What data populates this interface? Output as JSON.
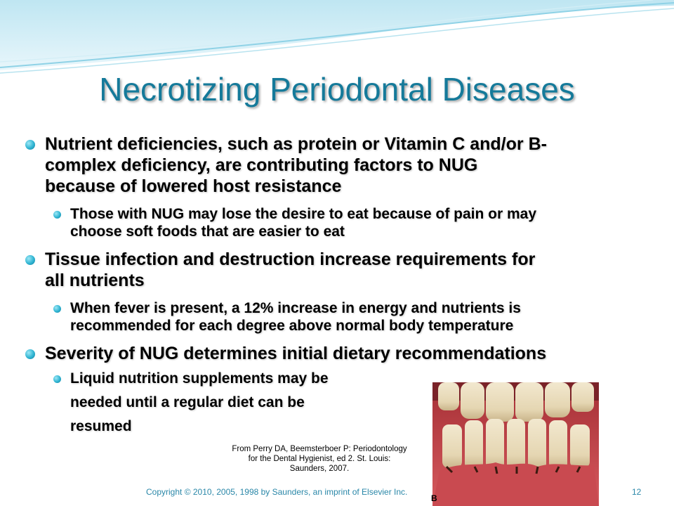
{
  "slide": {
    "title": "Necrotizing Periodontal Diseases",
    "bullets": [
      {
        "text": "Nutrient deficiencies, such as protein or Vitamin C and/or B-",
        "text_line2": "complex deficiency, are contributing factors to NUG",
        "text_line3": "because of lowered host resistance",
        "sub": {
          "line1": "Those with NUG may lose the desire to eat because of pain or may",
          "line2": "choose soft foods that are easier to eat"
        }
      },
      {
        "text": "Tissue infection and destruction increase requirements for",
        "text_line2": "all nutrients",
        "sub": {
          "line1": "When fever is present, a 12% increase in energy and nutrients is",
          "line2": "recommended for each degree above normal body temperature"
        }
      },
      {
        "text": "Severity of NUG determines initial dietary recommendations",
        "sub": {
          "line1": "Liquid nutrition supplements may be",
          "line2": "needed until a regular diet can be",
          "line3": "resumed"
        }
      }
    ],
    "image_credit": {
      "line1": "From Perry DA, Beemsterboer P: Periodontology",
      "line2": "for the Dental Hygienist, ed 2. St. Louis:",
      "line3": "Saunders, 2007."
    },
    "photo_label": "B",
    "footer": "Copyright © 2010, 2005, 1998 by Saunders, an imprint of Elsevier Inc.",
    "page_number": "12"
  },
  "colors": {
    "title": "#157a9a",
    "bullet": "#2fb4d2",
    "footer": "#2a87a8",
    "wave": "#8fd2e6"
  }
}
